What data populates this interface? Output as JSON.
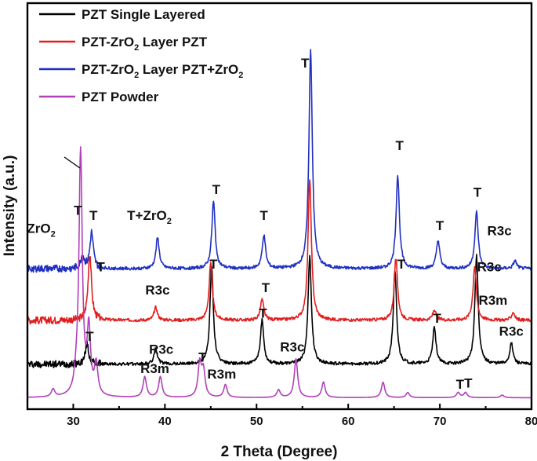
{
  "chart_data": {
    "type": "line",
    "xlabel": "2 Theta (Degree)",
    "ylabel": "Intensity (a.u.)",
    "xlim": [
      25,
      80
    ],
    "x_ticks": [
      "30",
      "40",
      "50",
      "60",
      "70",
      "80"
    ],
    "grid": false,
    "legend_position": "top-left",
    "series": [
      {
        "name": "PZT Single Layered",
        "legend_main": "PZT Single Layered",
        "legend_sub": "",
        "legend_tail": "",
        "color": "#000000",
        "baseline": 0.15,
        "peaks": [
          [
            31.5,
            0.08
          ],
          [
            39.0,
            0.06
          ],
          [
            45.1,
            0.38
          ],
          [
            50.6,
            0.17
          ],
          [
            55.8,
            0.42
          ],
          [
            65.1,
            0.36
          ],
          [
            69.4,
            0.14
          ],
          [
            74.0,
            0.42
          ],
          [
            77.8,
            0.08
          ]
        ]
      },
      {
        "name": "PZT-ZrO2 Layer PZT",
        "legend_main": "PZT-ZrO",
        "legend_sub": "2",
        "legend_tail": " Layer PZT",
        "color": "#e02020",
        "baseline": 0.32,
        "peaks": [
          [
            31.8,
            0.26
          ],
          [
            39.0,
            0.05
          ],
          [
            45.0,
            0.22
          ],
          [
            50.6,
            0.08
          ],
          [
            55.8,
            0.55
          ],
          [
            65.2,
            0.24
          ],
          [
            69.4,
            0.04
          ],
          [
            73.8,
            0.21
          ],
          [
            78.0,
            0.03
          ]
        ]
      },
      {
        "name": "PZT-ZrO2 Layer PZT+ZrO2",
        "legend_main": "PZT-ZrO",
        "legend_sub": "2",
        "legend_tail": " Layer PZT+ZrO",
        "legend_sub2": "2",
        "color": "#2030c0",
        "baseline": 0.52,
        "peaks": [
          [
            31.0,
            0.05
          ],
          [
            32.0,
            0.14
          ],
          [
            39.2,
            0.12
          ],
          [
            45.3,
            0.26
          ],
          [
            50.8,
            0.13
          ],
          [
            55.9,
            0.85
          ],
          [
            65.4,
            0.36
          ],
          [
            69.8,
            0.11
          ],
          [
            74.0,
            0.22
          ],
          [
            78.2,
            0.03
          ]
        ]
      },
      {
        "name": "PZT Powder",
        "legend_main": "PZT Powder",
        "legend_sub": "",
        "legend_tail": "",
        "color": "#b040b8",
        "baseline": 0.02,
        "peaks": [
          [
            27.8,
            0.03
          ],
          [
            30.3,
            0.04
          ],
          [
            30.8,
            0.95
          ],
          [
            31.7,
            0.25
          ],
          [
            32.5,
            0.12
          ],
          [
            37.8,
            0.08
          ],
          [
            39.5,
            0.08
          ],
          [
            43.8,
            0.13
          ],
          [
            44.2,
            0.1
          ],
          [
            46.6,
            0.05
          ],
          [
            52.4,
            0.03
          ],
          [
            54.3,
            0.15
          ],
          [
            57.3,
            0.06
          ],
          [
            63.8,
            0.06
          ],
          [
            66.5,
            0.02
          ],
          [
            72.0,
            0.02
          ],
          [
            72.8,
            0.02
          ],
          [
            76.8,
            0.01
          ]
        ]
      }
    ],
    "annotations": [
      {
        "text": "T",
        "sub": "",
        "x": 30.5,
        "y": 0.73
      },
      {
        "text": "T",
        "sub": "",
        "x": 32.2,
        "y": 0.71
      },
      {
        "text": "ZrO",
        "sub": "2",
        "x": 26.5,
        "y": 0.66
      },
      {
        "text": "T+ZrO",
        "sub": "2",
        "x": 38.3,
        "y": 0.71
      },
      {
        "text": "T",
        "sub": "",
        "x": 45.6,
        "y": 0.81
      },
      {
        "text": "T",
        "sub": "",
        "x": 50.8,
        "y": 0.71
      },
      {
        "text": "T",
        "sub": "",
        "x": 55.3,
        "y": 1.3
      },
      {
        "text": "T",
        "sub": "",
        "x": 65.6,
        "y": 0.98
      },
      {
        "text": "T",
        "sub": "",
        "x": 70.0,
        "y": 0.67
      },
      {
        "text": "T",
        "sub": "",
        "x": 74.1,
        "y": 0.8
      },
      {
        "text": "R3c",
        "sub": "",
        "x": 76.5,
        "y": 0.65
      },
      {
        "text": "T",
        "sub": "",
        "x": 33.0,
        "y": 0.51
      },
      {
        "text": "R3c",
        "sub": "",
        "x": 39.2,
        "y": 0.42
      },
      {
        "text": "T",
        "sub": "",
        "x": 45.3,
        "y": 0.52
      },
      {
        "text": "T",
        "sub": "",
        "x": 51.0,
        "y": 0.43
      },
      {
        "text": "T",
        "sub": "",
        "x": 65.8,
        "y": 0.52
      },
      {
        "text": "R3c",
        "sub": "",
        "x": 75.4,
        "y": 0.51
      },
      {
        "text": "R3m",
        "sub": "",
        "x": 75.8,
        "y": 0.38
      },
      {
        "text": "T",
        "sub": "",
        "x": 31.8,
        "y": 0.24
      },
      {
        "text": "R3c",
        "sub": "",
        "x": 39.6,
        "y": 0.19
      },
      {
        "text": "T",
        "sub": "",
        "x": 50.7,
        "y": 0.33
      },
      {
        "text": "T",
        "sub": "",
        "x": 69.7,
        "y": 0.31
      },
      {
        "text": "R3c",
        "sub": "",
        "x": 77.8,
        "y": 0.26
      },
      {
        "text": "R3m",
        "sub": "",
        "x": 38.9,
        "y": 0.115
      },
      {
        "text": "T",
        "sub": "",
        "x": 44.1,
        "y": 0.16
      },
      {
        "text": "R3m",
        "sub": "",
        "x": 46.2,
        "y": 0.095
      },
      {
        "text": "R3c",
        "sub": "",
        "x": 53.9,
        "y": 0.2
      },
      {
        "text": "T",
        "sub": "",
        "x": 72.2,
        "y": 0.055
      },
      {
        "text": "T",
        "sub": "",
        "x": 73.1,
        "y": 0.06
      }
    ]
  }
}
